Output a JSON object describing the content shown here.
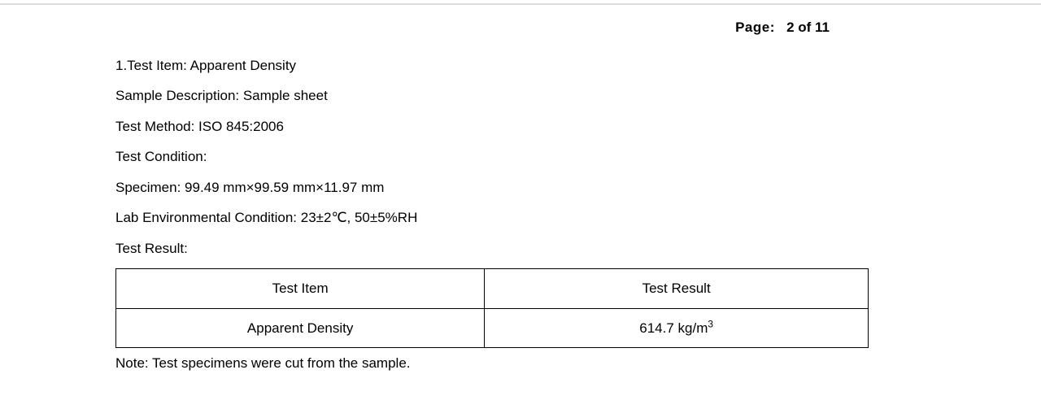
{
  "header": {
    "page_label": "Page:",
    "page_value": "2 of 11"
  },
  "test": {
    "item_line": "1.Test Item: Apparent Density",
    "sample_description": "Sample Description: Sample sheet",
    "method": "Test Method: ISO 845:2006",
    "condition_label": "Test Condition:",
    "specimen": "Specimen: 99.49 mm×99.59 mm×11.97 mm",
    "lab_condition": "Lab Environmental Condition: 23±2℃, 50±5%RH",
    "result_label": "Test Result:"
  },
  "table": {
    "columns": [
      "Test Item",
      "Test Result"
    ],
    "column_widths": [
      "49%",
      "51%"
    ],
    "rows": [
      {
        "item": "Apparent Density",
        "result_value": "614.7 kg/m",
        "result_exp": "3"
      }
    ],
    "border_color": "#000000",
    "background_color": "#ffffff"
  },
  "note": "Note: Test specimens were cut from the sample."
}
